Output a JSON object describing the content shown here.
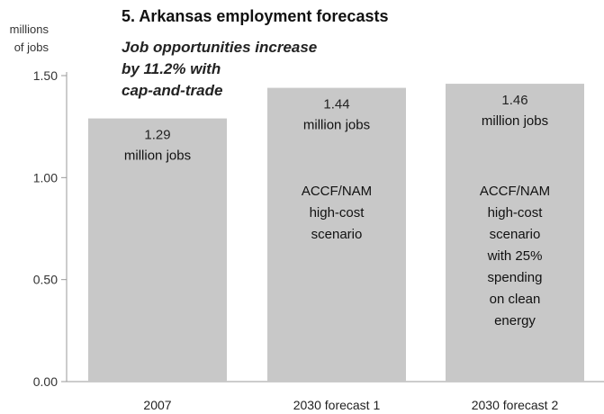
{
  "chart_data": {
    "type": "bar",
    "title": "5. Arkansas employment forecasts",
    "subtitle_lines": [
      "Job opportunities increase",
      "by 11.2% with",
      "cap-and-trade"
    ],
    "ylabel_lines": [
      "millions",
      "of jobs"
    ],
    "categories": [
      "2007",
      "2030 forecast 1",
      "2030 forecast 2"
    ],
    "values": [
      1.29,
      1.44,
      1.46
    ],
    "value_labels": [
      "1.29",
      "1.44",
      "1.46"
    ],
    "unit_label": "million jobs",
    "annotations": [
      [],
      [
        "ACCF/NAM",
        "high-cost",
        "scenario"
      ],
      [
        "ACCF/NAM",
        "high-cost",
        "scenario",
        "with 25%",
        "spending",
        "on clean",
        "energy"
      ]
    ],
    "ylim": [
      0,
      1.5
    ],
    "yticks": [
      "0.00",
      "0.50",
      "1.00",
      "1.50"
    ],
    "ytick_values": [
      0,
      0.5,
      1.0,
      1.5
    ],
    "grid": false,
    "colors": {
      "bar": "#c8c8c8",
      "axis": "#999999"
    }
  }
}
